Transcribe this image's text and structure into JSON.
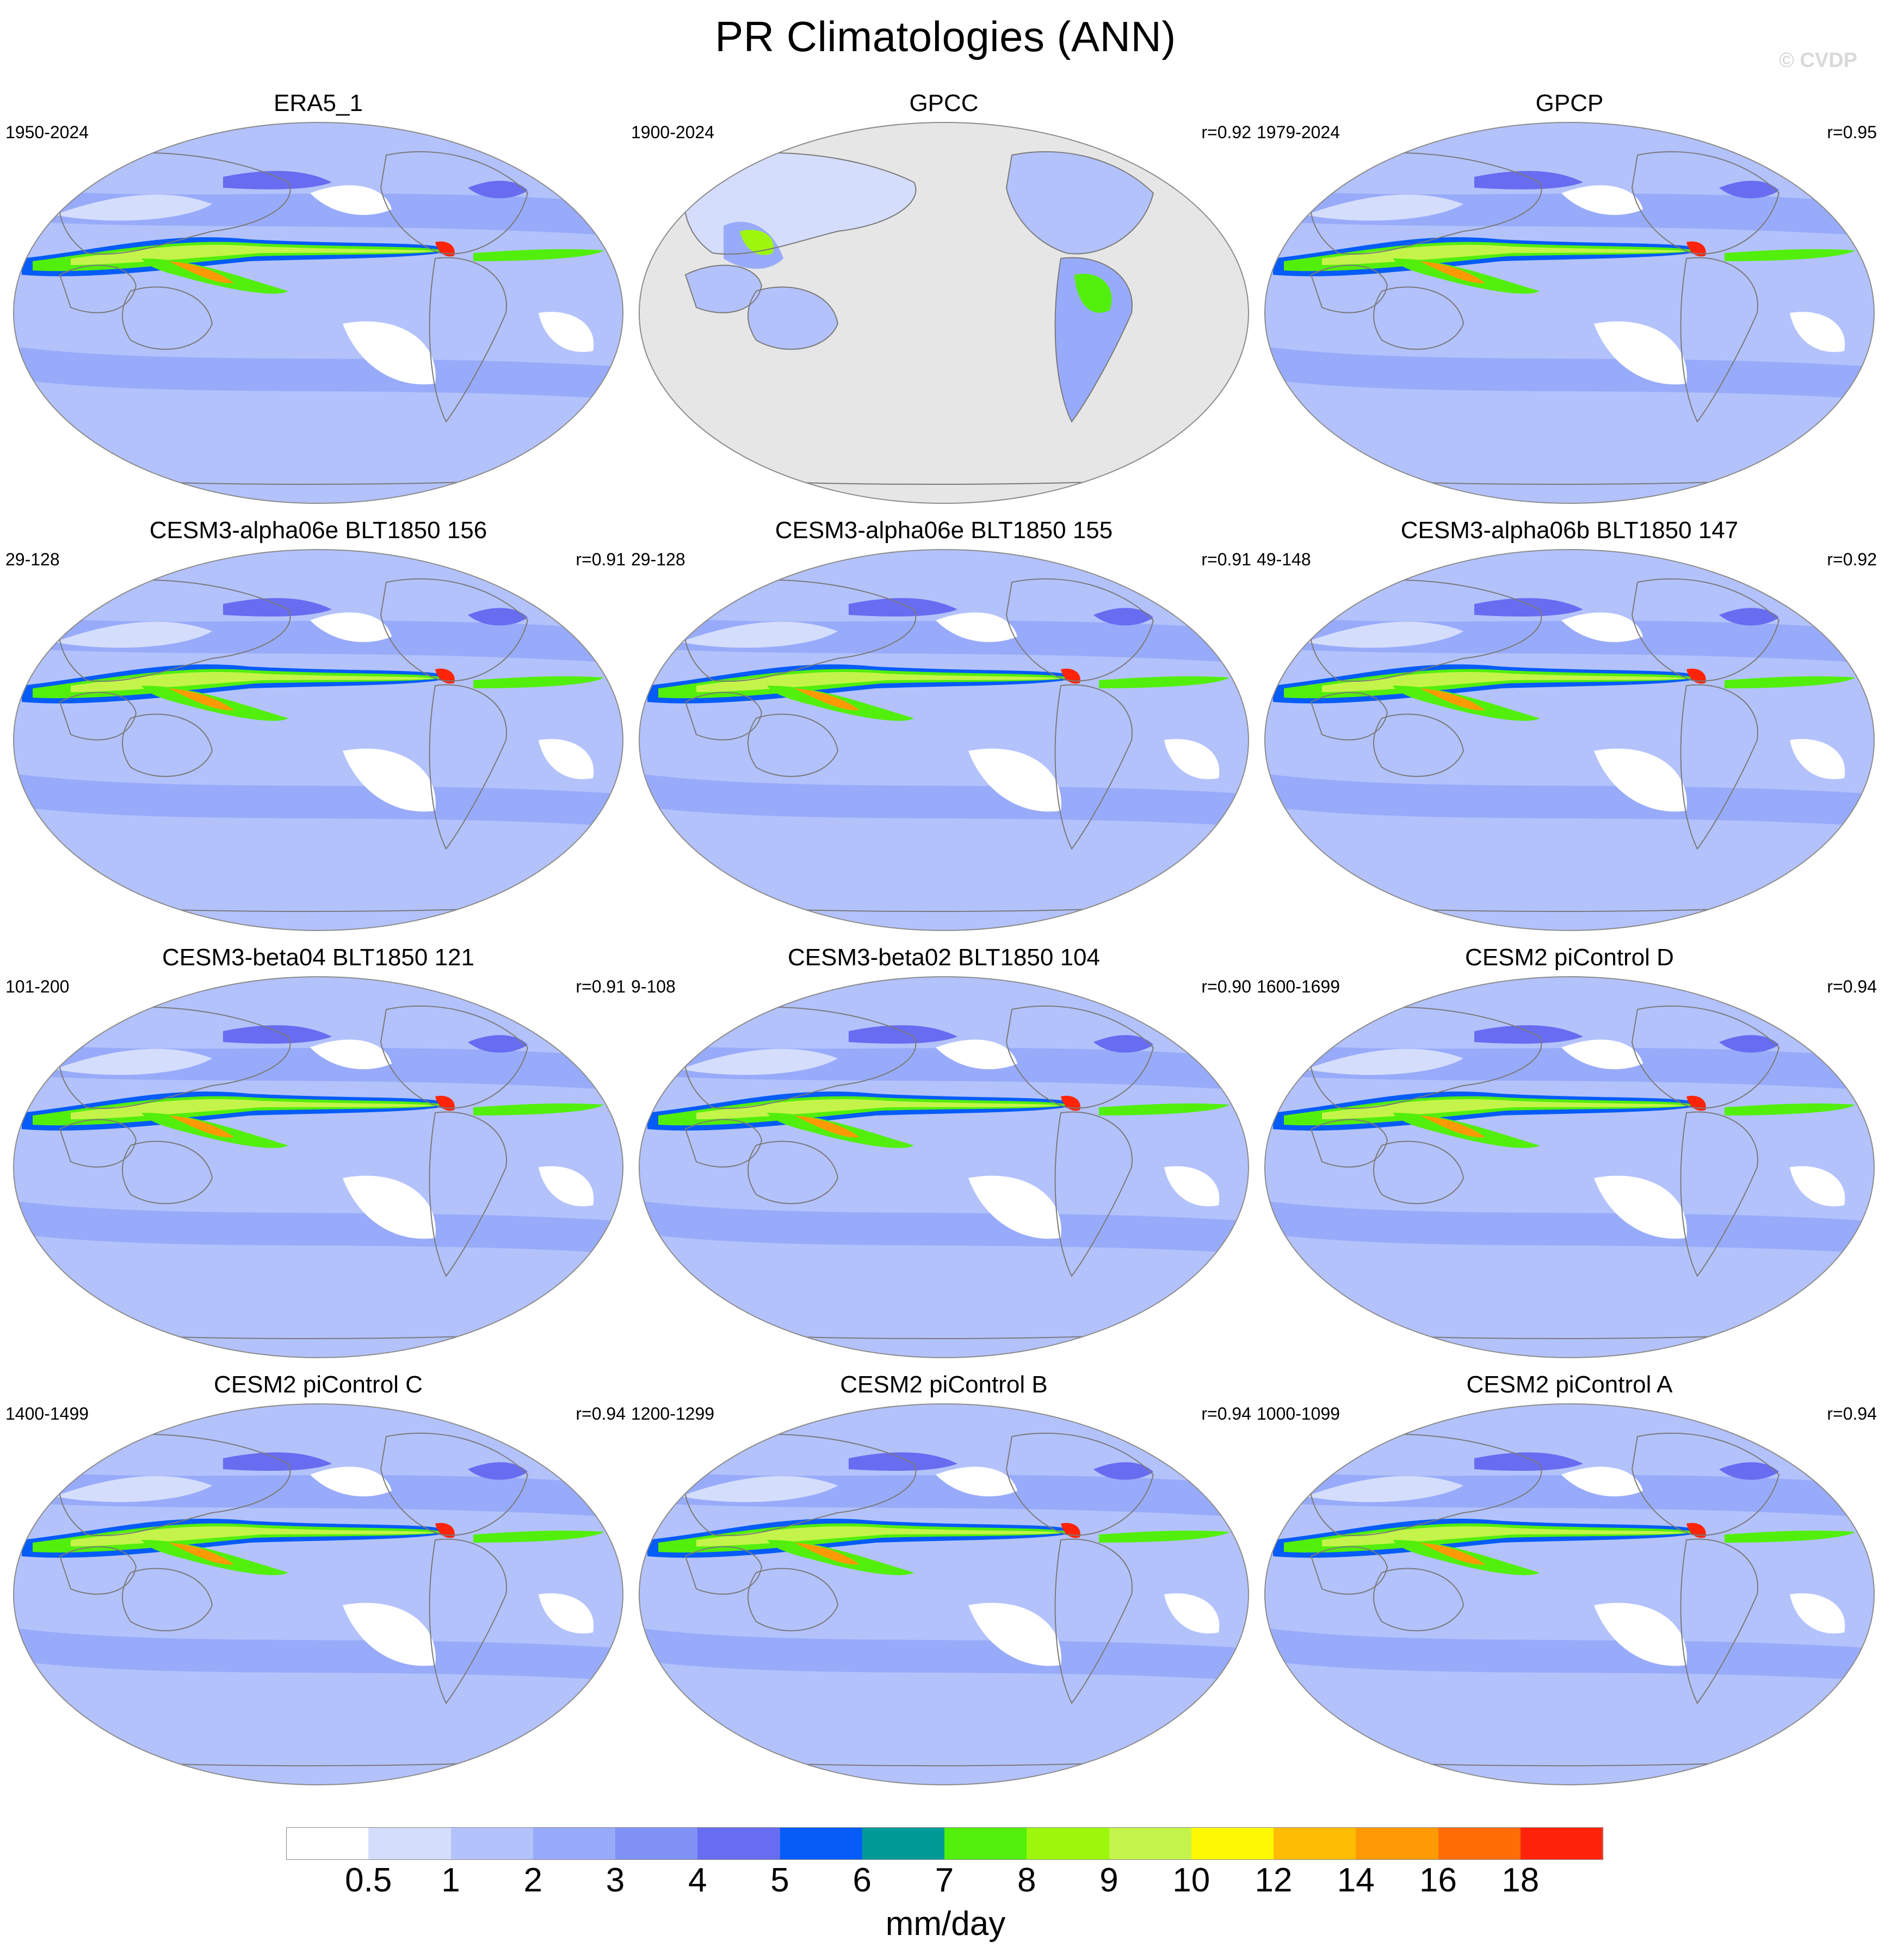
{
  "title": "PR Climatologies (ANN)",
  "watermark": "© CVDP",
  "colors": {
    "ocean_base": "#b3c2fb",
    "no_data": "#e6e6e6",
    "coast": "#7a7a7a"
  },
  "panels": [
    {
      "title": "ERA5_1",
      "years": "1950-2024",
      "corr": "",
      "kind": "full"
    },
    {
      "title": "GPCC",
      "years": "1900-2024",
      "corr": "r=0.92",
      "kind": "land"
    },
    {
      "title": "GPCP",
      "years": "1979-2024",
      "corr": "r=0.95",
      "kind": "full"
    },
    {
      "title": "CESM3-alpha06e BLT1850 156",
      "years": "29-128",
      "corr": "r=0.91",
      "kind": "full"
    },
    {
      "title": "CESM3-alpha06e BLT1850 155",
      "years": "29-128",
      "corr": "r=0.91",
      "kind": "full"
    },
    {
      "title": "CESM3-alpha06b BLT1850 147",
      "years": "49-148",
      "corr": "r=0.92",
      "kind": "full"
    },
    {
      "title": "CESM3-beta04 BLT1850 121",
      "years": "101-200",
      "corr": "r=0.91",
      "kind": "full"
    },
    {
      "title": "CESM3-beta02 BLT1850 104",
      "years": "9-108",
      "corr": "r=0.90",
      "kind": "full"
    },
    {
      "title": "CESM2 piControl D",
      "years": "1600-1699",
      "corr": "r=0.94",
      "kind": "full"
    },
    {
      "title": "CESM2 piControl C",
      "years": "1400-1499",
      "corr": "r=0.94",
      "kind": "full"
    },
    {
      "title": "CESM2 piControl B",
      "years": "1200-1299",
      "corr": "r=0.94",
      "kind": "full"
    },
    {
      "title": "CESM2 piControl A",
      "years": "1000-1099",
      "corr": "r=0.94",
      "kind": "full"
    }
  ],
  "colorbar": {
    "units": "mm/day",
    "labels": [
      "0.5",
      "1",
      "2",
      "3",
      "4",
      "5",
      "6",
      "7",
      "8",
      "9",
      "10",
      "12",
      "14",
      "16",
      "18"
    ],
    "colors": [
      "#ffffff",
      "#d5ddfd",
      "#b3c2fb",
      "#98abfa",
      "#8192f7",
      "#676cf1",
      "#055cf7",
      "#009b97",
      "#52ef0c",
      "#9df70c",
      "#c4f44a",
      "#fff804",
      "#ffbc04",
      "#ff9a04",
      "#ff6d04",
      "#ff2409"
    ]
  }
}
